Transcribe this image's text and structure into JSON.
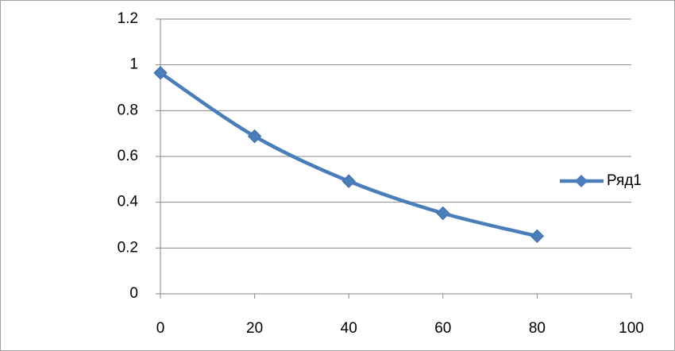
{
  "chart_data": {
    "type": "line",
    "x": [
      0,
      20,
      40,
      60,
      80
    ],
    "series": [
      {
        "name": "Ряд1",
        "color": "#4a7ebb",
        "values": [
          0.965,
          0.688,
          0.492,
          0.352,
          0.252
        ]
      }
    ],
    "xlim": [
      0,
      100
    ],
    "xticks": [
      0,
      20,
      40,
      60,
      80,
      100
    ],
    "ylim": [
      0,
      1.2
    ],
    "yticks": [
      0,
      0.2,
      0.4,
      0.6,
      0.8,
      1,
      1.2
    ],
    "grid": true,
    "smooth": true,
    "marker": "diamond",
    "legend": "right"
  }
}
